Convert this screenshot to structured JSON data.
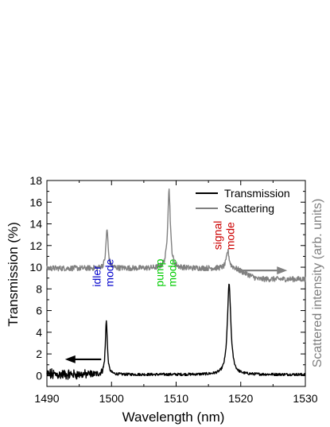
{
  "chart_data": {
    "type": "line",
    "xlabel": "Wavelength (nm)",
    "ylabel": "Transmission (%)",
    "y2label": "Scattered intensity (arb. units)",
    "xlim": [
      1490,
      1530
    ],
    "ylim": [
      -1,
      18
    ],
    "xticks": [
      1490,
      1500,
      1510,
      1520,
      1530
    ],
    "yticks": [
      0,
      2,
      4,
      6,
      8,
      10,
      12,
      14,
      16,
      18
    ],
    "legend_position": "top-right",
    "series": [
      {
        "name": "Transmission",
        "axis": "left",
        "color": "#000000",
        "baseline": 0.1,
        "noise_until": 1499,
        "noise_amplitude_pct": 0.45,
        "quiet_amplitude_pct": 0.12,
        "peaks": [
          {
            "x": 1499.2,
            "height": 5.0,
            "width": 0.18
          },
          {
            "x": 1518.2,
            "height": 8.3,
            "width": 0.32
          }
        ]
      },
      {
        "name": "Scattering",
        "axis": "right",
        "color": "#808080",
        "baseline": 9.9,
        "end_level": 8.9,
        "noise_amplitude_pct": 0.25,
        "peaks": [
          {
            "x": 1499.3,
            "height": 3.6,
            "width": 0.2
          },
          {
            "x": 1508.9,
            "height": 7.2,
            "width": 0.25
          },
          {
            "x": 1518.0,
            "height": 1.6,
            "width": 0.25
          }
        ]
      }
    ],
    "annotations": [
      {
        "lines": [
          "idler",
          "mode"
        ],
        "color": "#0000cc",
        "x": 1499.3,
        "y": 8.2
      },
      {
        "lines": [
          "pump",
          "mode"
        ],
        "color": "#00cc00",
        "x": 1509.0,
        "y": 8.2
      },
      {
        "lines": [
          "signal",
          "mode"
        ],
        "color": "#cc0000",
        "x": 1518.0,
        "y": 11.6
      }
    ],
    "arrows": [
      {
        "direction": "left",
        "color": "#000000",
        "x_from": 1498.4,
        "x_to": 1492.8,
        "y": 1.5
      },
      {
        "direction": "right",
        "color": "#808080",
        "x_from": 1519.3,
        "x_to": 1527.2,
        "y": 9.7
      }
    ]
  }
}
